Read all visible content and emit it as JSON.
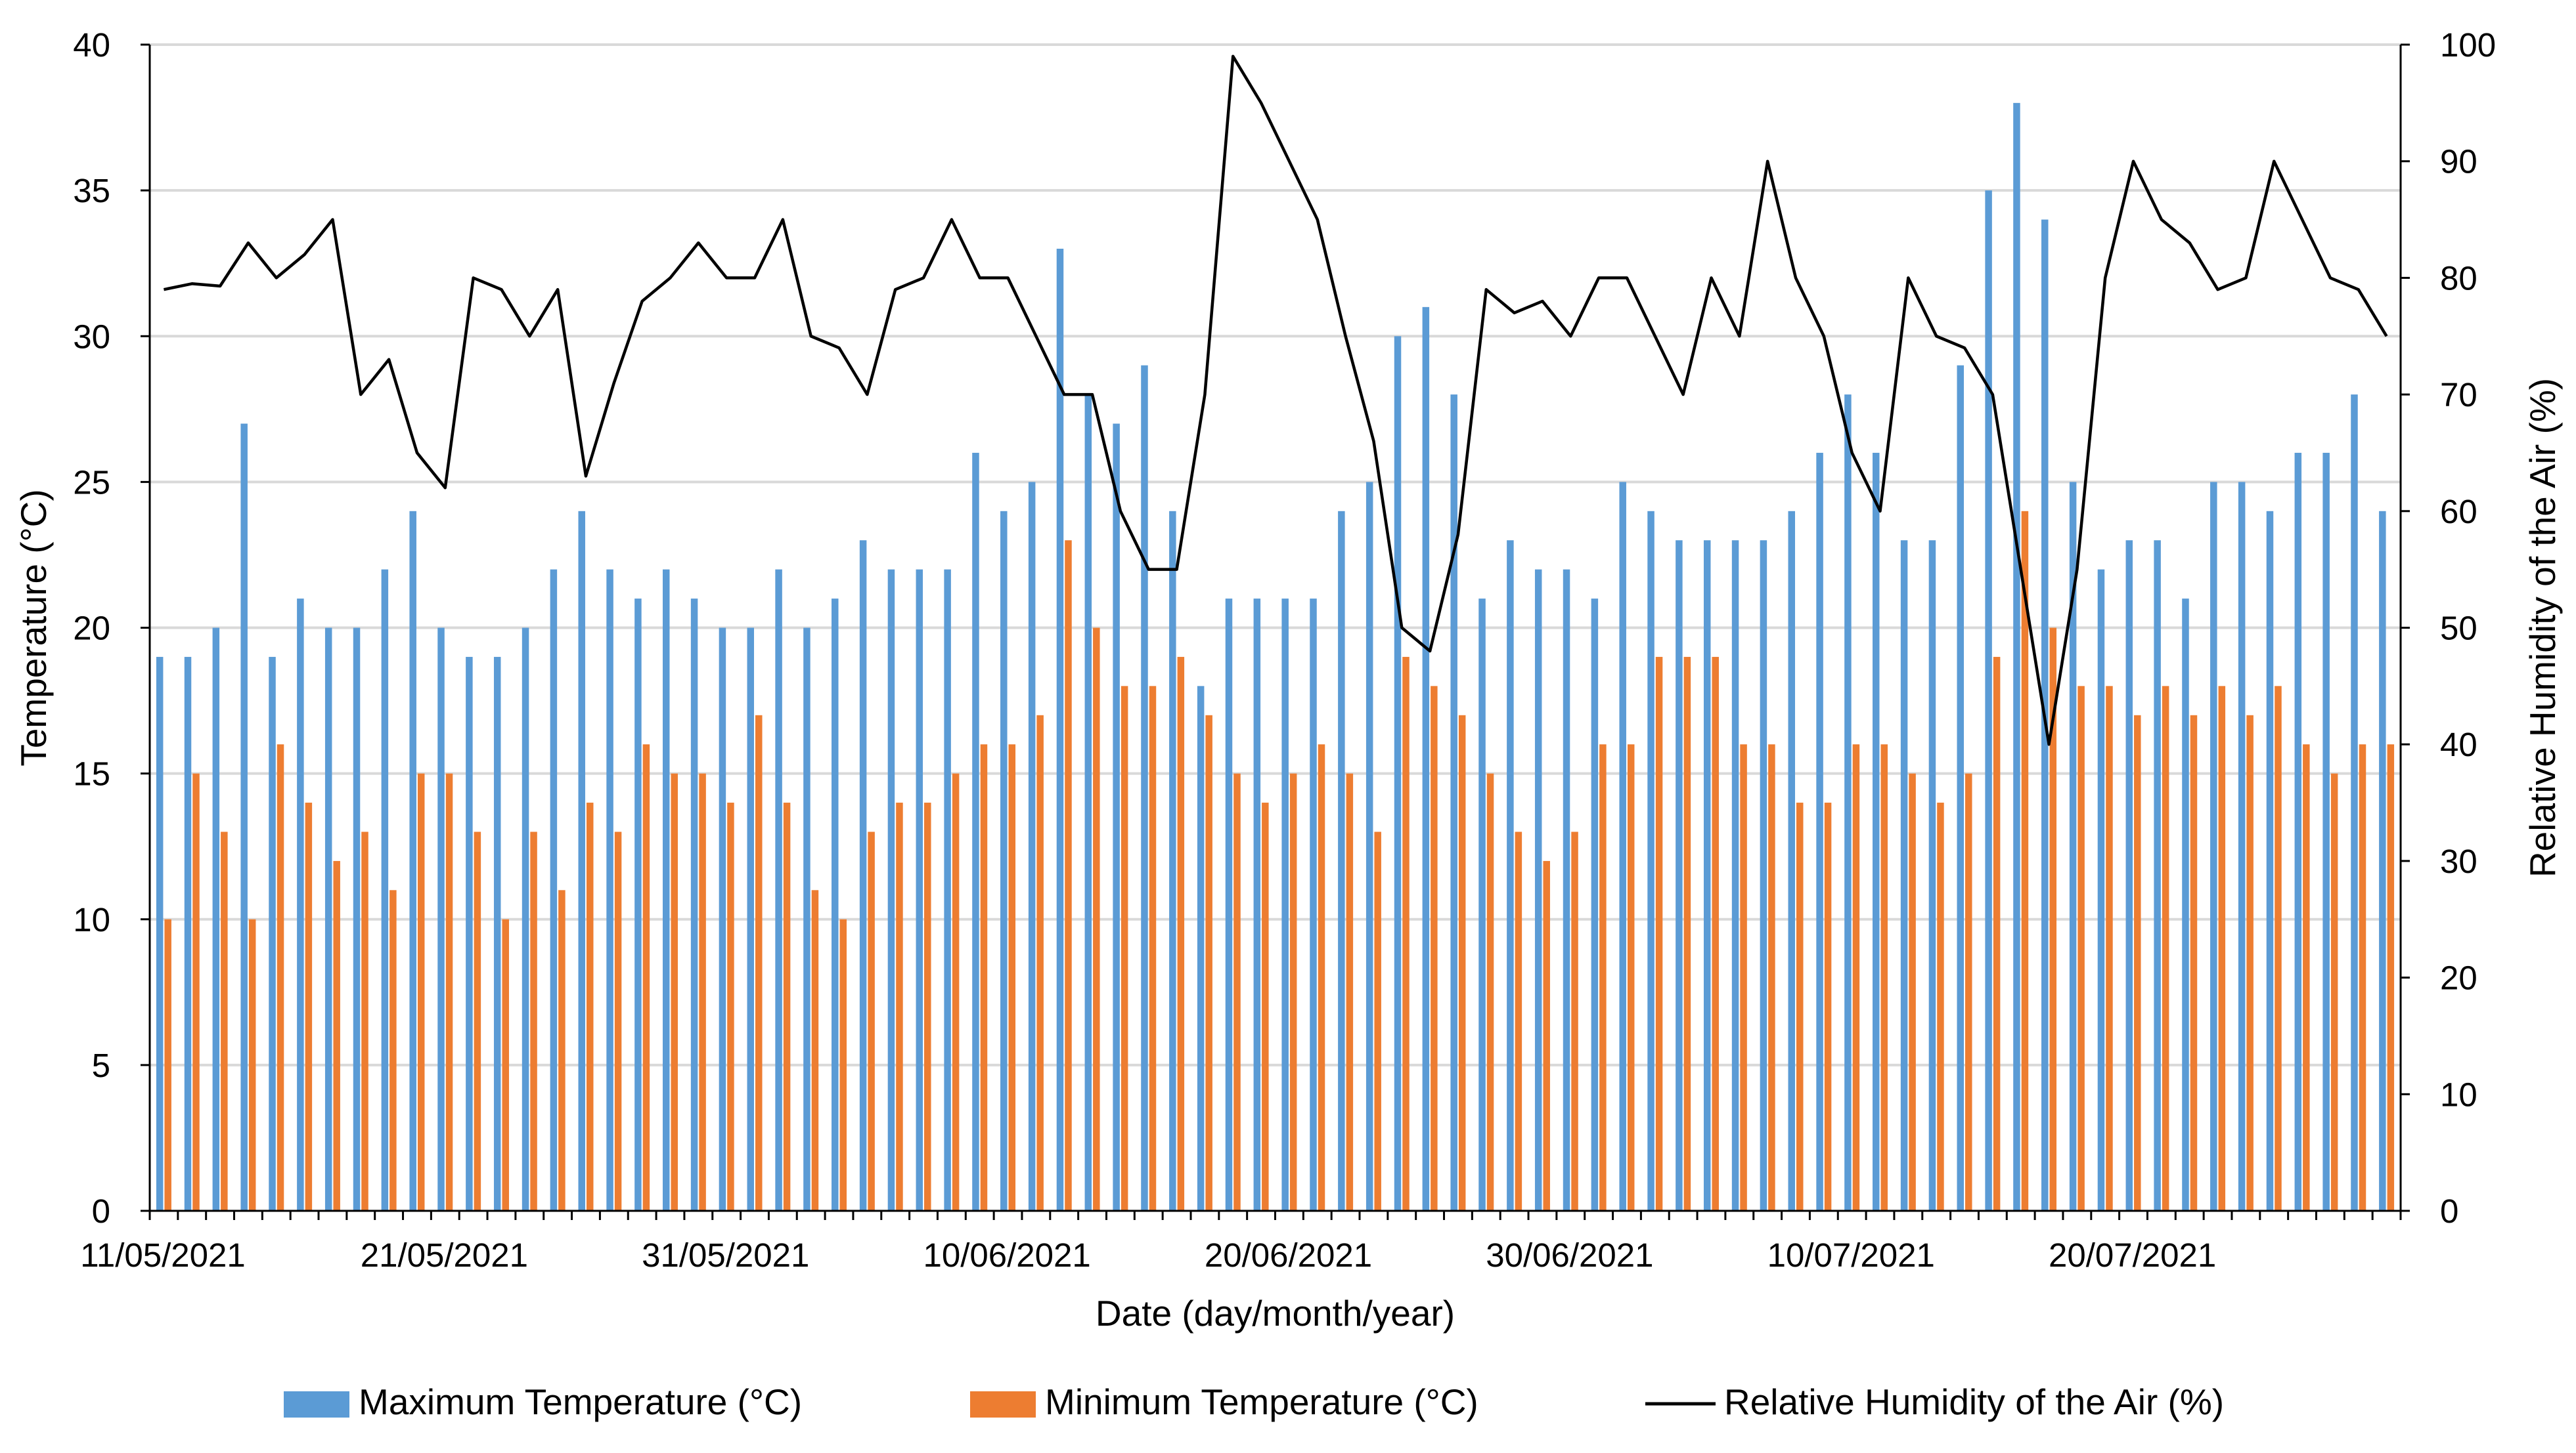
{
  "chart_data": {
    "type": "bar+line",
    "xlabel": "Date (day/month/year)",
    "ylabel_left": "Temperature (°C)",
    "ylabel_right": "Relative Humidity of the Air (%)",
    "ylim_left": [
      0,
      40
    ],
    "ylim_right": [
      0,
      100
    ],
    "yticks_left": [
      "0",
      "5",
      "10",
      "15",
      "20",
      "25",
      "30",
      "35",
      "40"
    ],
    "yticks_right": [
      "0",
      "10",
      "20",
      "30",
      "40",
      "50",
      "60",
      "70",
      "80",
      "90",
      "100"
    ],
    "xtick_labels": [
      "11/05/2021",
      "21/05/2021",
      "31/05/2021",
      "10/06/2021",
      "20/06/2021",
      "30/06/2021",
      "10/07/2021",
      "20/07/2021"
    ],
    "xtick_day_offsets": [
      0,
      10,
      20,
      30,
      40,
      50,
      60,
      70
    ],
    "grid": "horizontal",
    "legend_position": "bottom",
    "colors": {
      "max_temp": "#5b9bd5",
      "min_temp": "#ed7d31",
      "humidity": "#000000",
      "grid": "#d9d9d9",
      "axis": "#000000"
    },
    "series": [
      {
        "name": "Maximum Temperature (°C)",
        "type": "bar",
        "axis": "left",
        "values": [
          19,
          19,
          20,
          27,
          19,
          21,
          20,
          20,
          22,
          24,
          20,
          19,
          19,
          20,
          22,
          24,
          22,
          21,
          22,
          21,
          20,
          20,
          22,
          20,
          21,
          23,
          22,
          22,
          22,
          26,
          24,
          25,
          33,
          28,
          27,
          29,
          24,
          18,
          21,
          21,
          21,
          21,
          24,
          25,
          30,
          31,
          28,
          21,
          23,
          22,
          22,
          21,
          25,
          24,
          23,
          23,
          23,
          23,
          24,
          26,
          28,
          26,
          23,
          23,
          29,
          35,
          38,
          34,
          25,
          22,
          23,
          23,
          21,
          25,
          25,
          24,
          26,
          26,
          28,
          24
        ]
      },
      {
        "name": "Minimum Temperature (°C)",
        "type": "bar",
        "axis": "left",
        "values": [
          10,
          15,
          13,
          10,
          16,
          14,
          12,
          13,
          11,
          15,
          15,
          13,
          10,
          13,
          11,
          14,
          13,
          16,
          15,
          15,
          14,
          17,
          14,
          11,
          10,
          13,
          14,
          14,
          15,
          16,
          16,
          17,
          23,
          20,
          18,
          18,
          19,
          17,
          15,
          14,
          15,
          16,
          15,
          13,
          19,
          18,
          17,
          15,
          13,
          12,
          13,
          16,
          16,
          19,
          19,
          19,
          16,
          16,
          14,
          14,
          16,
          16,
          15,
          14,
          15,
          19,
          24,
          20,
          18,
          18,
          17,
          18,
          17,
          18,
          17,
          18,
          16,
          15,
          16,
          16
        ]
      },
      {
        "name": "Relative Humidity of the Air (%)",
        "type": "line",
        "axis": "right",
        "values": [
          79,
          79.5,
          79.3,
          83,
          80,
          82,
          85,
          70,
          73,
          65,
          62,
          80,
          79,
          75,
          79,
          63,
          71,
          78,
          80,
          83,
          80,
          80,
          85,
          75,
          74,
          70,
          79,
          80,
          85,
          80,
          80,
          75,
          70,
          70,
          60,
          55,
          55,
          70,
          99,
          95,
          90,
          85,
          75,
          66,
          50,
          48,
          58,
          79,
          77,
          78,
          75,
          80,
          80,
          75,
          70,
          80,
          75,
          90,
          80,
          75,
          65,
          60,
          80,
          75,
          74,
          70,
          55,
          40,
          55,
          80,
          90,
          85,
          83,
          79,
          80,
          90,
          85,
          80,
          79,
          75
        ]
      }
    ]
  }
}
